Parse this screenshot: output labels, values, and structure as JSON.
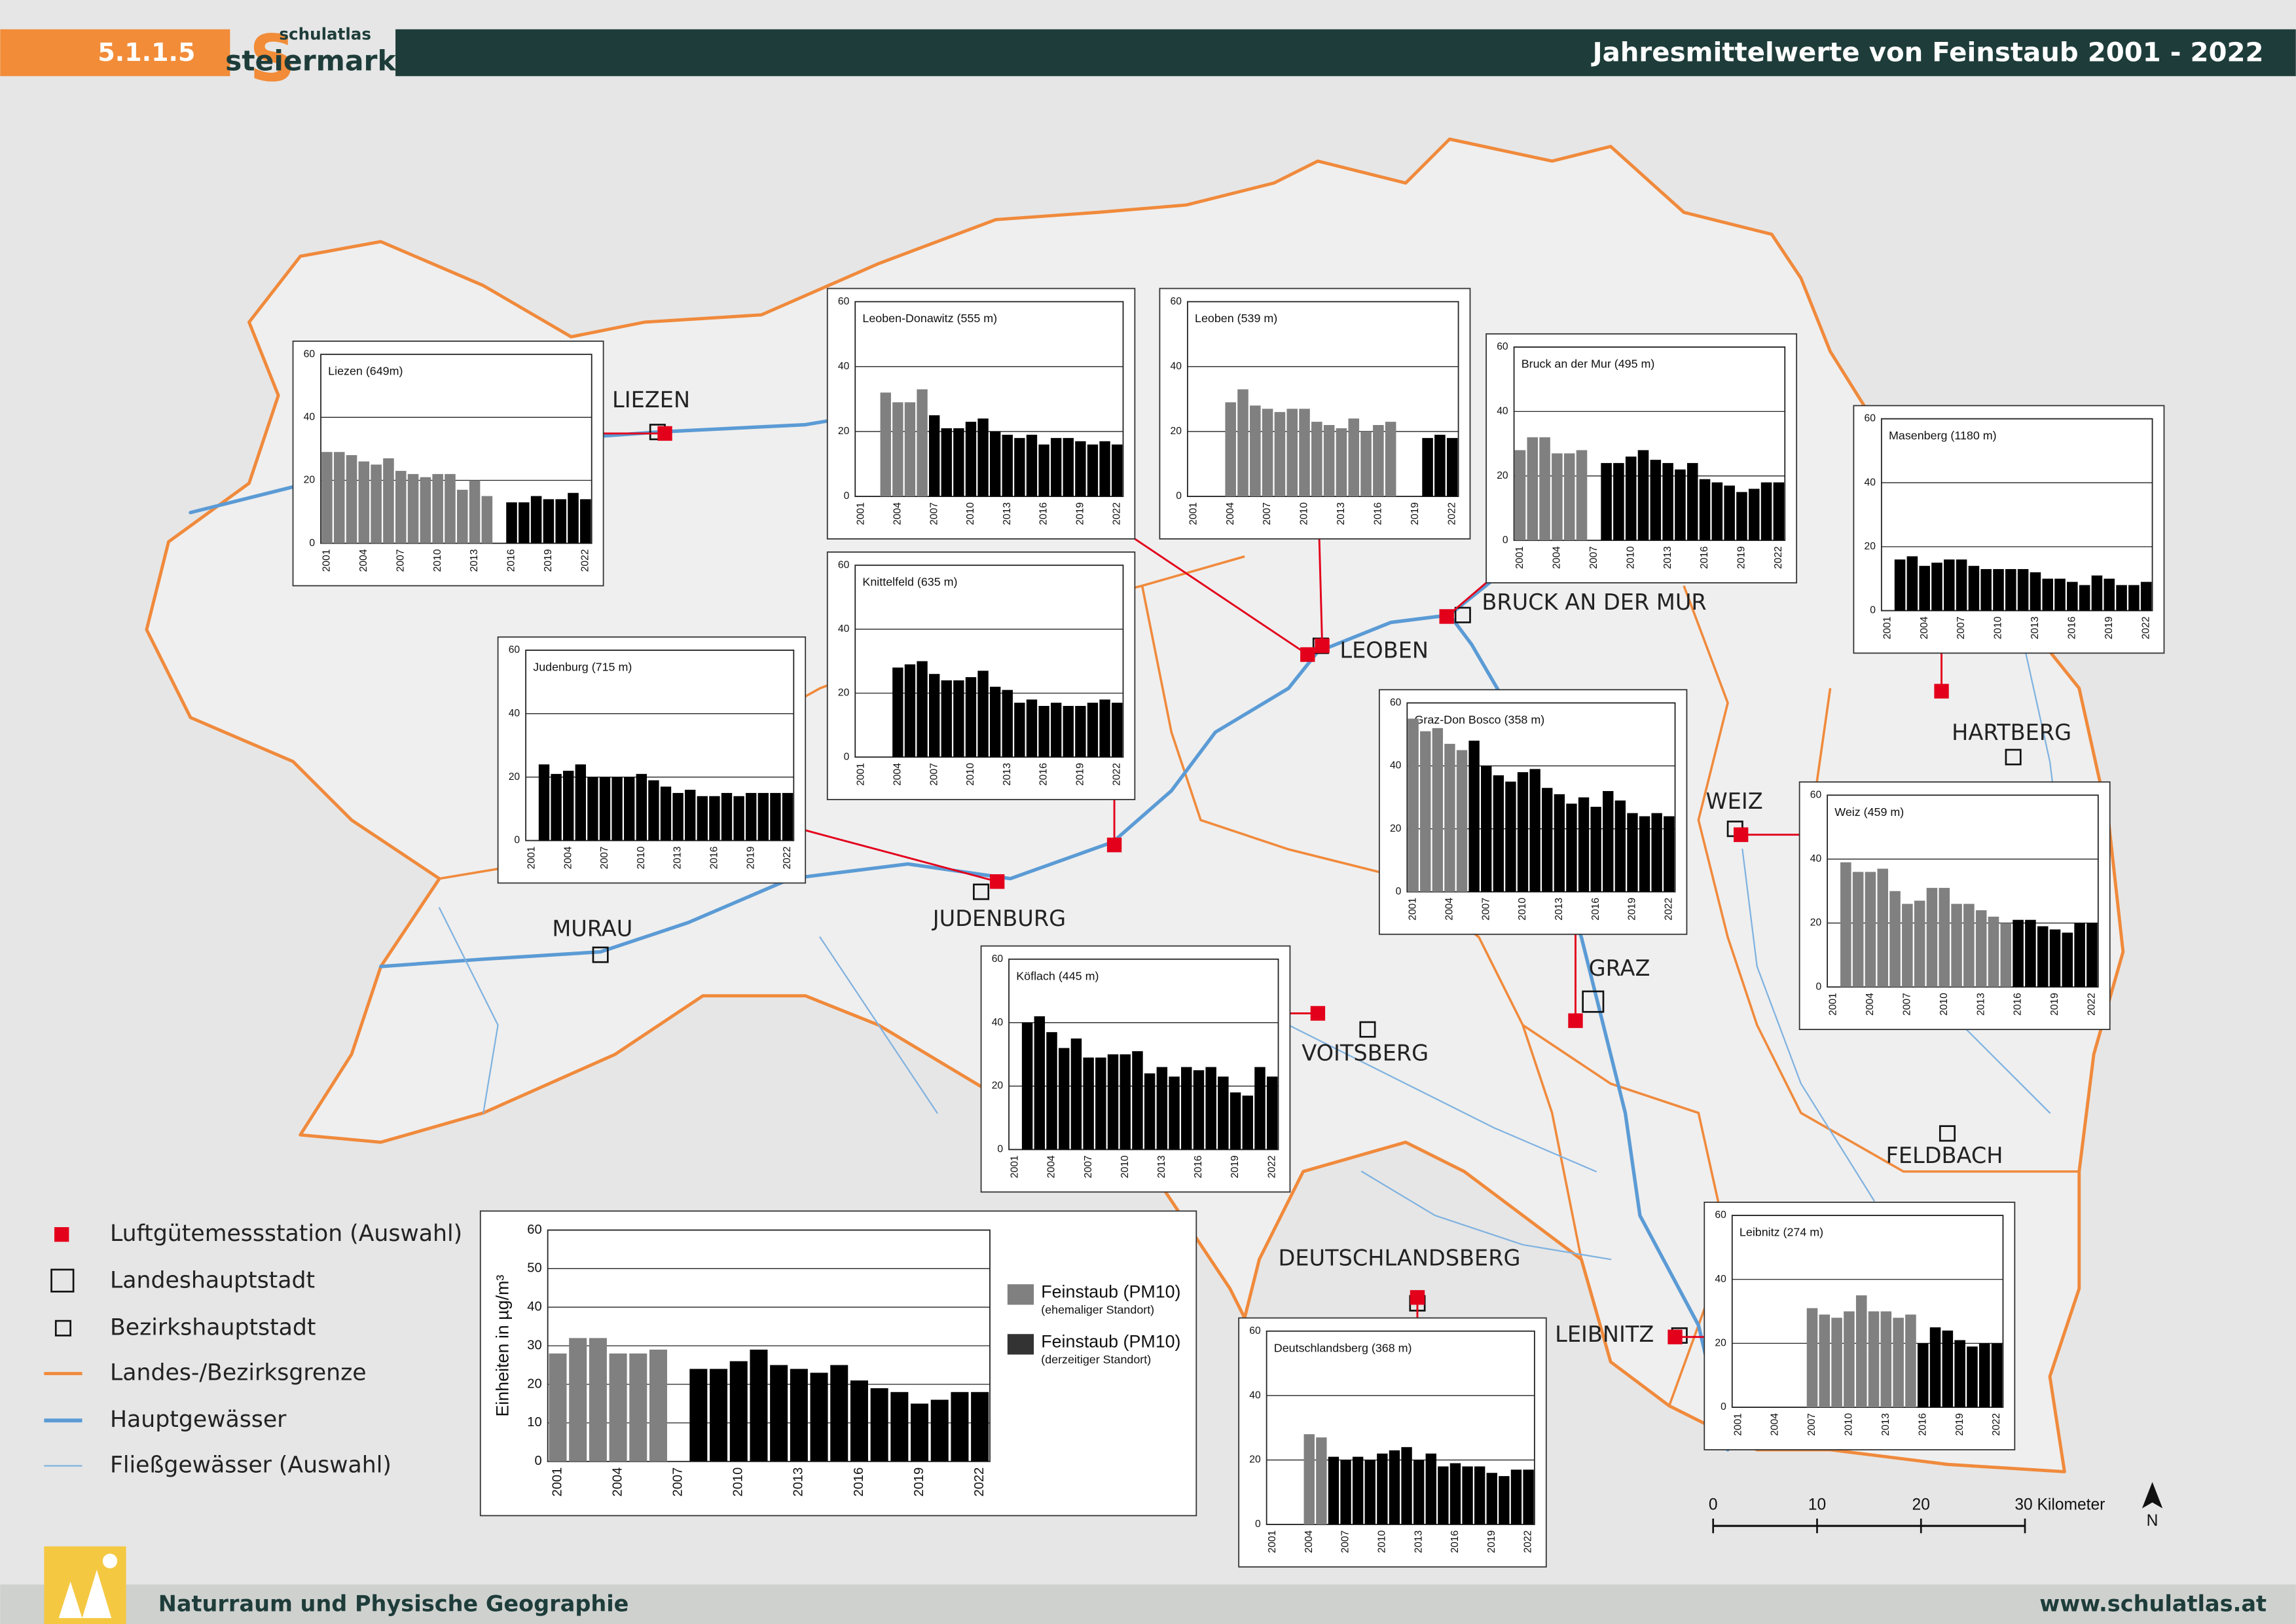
{
  "header": {
    "number": "5.1.1.5",
    "logo_letter": "S",
    "logo_top": "schulatlas",
    "logo_bottom": "steiermark",
    "title": "Jahresmittelwerte von Feinstaub 2001 - 2022"
  },
  "chart_data": [
    {
      "type": "bar",
      "title": "Liezen (649m)",
      "categories": [
        "2001",
        null,
        null,
        "2004",
        null,
        null,
        "2007",
        null,
        null,
        "2010",
        null,
        null,
        "2013",
        null,
        null,
        "2016",
        null,
        null,
        "2019",
        null,
        null,
        "2022"
      ],
      "ylim": [
        0,
        60
      ],
      "yticks": [
        0,
        20,
        40,
        60
      ],
      "grid": true,
      "series": [
        {
          "color": "#808080",
          "values": [
            29,
            29,
            28,
            26,
            25,
            27,
            23,
            22,
            21,
            22,
            22,
            17,
            20,
            15,
            null,
            null,
            null,
            null,
            null,
            null,
            null,
            null
          ]
        },
        {
          "color": "#000000",
          "values": [
            null,
            null,
            null,
            null,
            null,
            null,
            null,
            null,
            null,
            null,
            null,
            null,
            null,
            null,
            null,
            13,
            13,
            15,
            14,
            14,
            16,
            14
          ]
        }
      ]
    },
    {
      "type": "bar",
      "title": "Leoben-Donawitz (555 m)",
      "categories": [
        "2001",
        null,
        null,
        "2004",
        null,
        null,
        "2007",
        null,
        null,
        "2010",
        null,
        null,
        "2013",
        null,
        null,
        "2016",
        null,
        null,
        "2019",
        null,
        null,
        "2022"
      ],
      "ylim": [
        0,
        60
      ],
      "yticks": [
        0,
        20,
        40,
        60
      ],
      "grid": true,
      "series": [
        {
          "color": "#808080",
          "values": [
            null,
            null,
            32,
            29,
            29,
            33,
            null,
            null,
            null,
            null,
            null,
            null,
            null,
            null,
            null,
            null,
            null,
            null,
            null,
            null,
            null,
            null
          ]
        },
        {
          "color": "#000000",
          "values": [
            null,
            null,
            null,
            null,
            null,
            null,
            25,
            21,
            21,
            23,
            24,
            20,
            19,
            18,
            19,
            16,
            18,
            18,
            17,
            16,
            17,
            16
          ]
        }
      ]
    },
    {
      "type": "bar",
      "title": "Leoben (539 m)",
      "categories": [
        "2001",
        null,
        null,
        "2004",
        null,
        null,
        "2007",
        null,
        null,
        "2010",
        null,
        null,
        "2013",
        null,
        null,
        "2016",
        null,
        null,
        "2019",
        null,
        null,
        "2022"
      ],
      "ylim": [
        0,
        60
      ],
      "yticks": [
        0,
        20,
        40,
        60
      ],
      "grid": true,
      "series": [
        {
          "color": "#808080",
          "values": [
            null,
            null,
            null,
            29,
            33,
            28,
            27,
            26,
            27,
            27,
            23,
            22,
            21,
            24,
            20,
            22,
            23,
            null,
            null,
            null,
            null,
            null
          ]
        },
        {
          "color": "#000000",
          "values": [
            null,
            null,
            null,
            null,
            null,
            null,
            null,
            null,
            null,
            null,
            null,
            null,
            null,
            null,
            null,
            null,
            null,
            null,
            null,
            18,
            19,
            18
          ]
        }
      ]
    },
    {
      "type": "bar",
      "title": "Bruck an der Mur (495 m)",
      "categories": [
        "2001",
        null,
        null,
        "2004",
        null,
        null,
        "2007",
        null,
        null,
        "2010",
        null,
        null,
        "2013",
        null,
        null,
        "2016",
        null,
        null,
        "2019",
        null,
        null,
        "2022"
      ],
      "ylim": [
        0,
        60
      ],
      "yticks": [
        0,
        20,
        40,
        60
      ],
      "grid": true,
      "series": [
        {
          "color": "#808080",
          "values": [
            28,
            32,
            32,
            27,
            27,
            28,
            null,
            null,
            null,
            null,
            null,
            null,
            null,
            null,
            null,
            null,
            null,
            null,
            null,
            null,
            null,
            null
          ]
        },
        {
          "color": "#000000",
          "values": [
            null,
            null,
            null,
            null,
            null,
            null,
            null,
            24,
            24,
            26,
            28,
            25,
            24,
            22,
            24,
            19,
            18,
            17,
            15,
            16,
            18,
            18
          ]
        }
      ]
    },
    {
      "type": "bar",
      "title": "Masenberg (1180 m)",
      "categories": [
        "2001",
        null,
        null,
        "2004",
        null,
        null,
        "2007",
        null,
        null,
        "2010",
        null,
        null,
        "2013",
        null,
        null,
        "2016",
        null,
        null,
        "2019",
        null,
        null,
        "2022"
      ],
      "ylim": [
        0,
        60
      ],
      "yticks": [
        0,
        20,
        40,
        60
      ],
      "grid": true,
      "series": [
        {
          "color": "#000000",
          "values": [
            null,
            16,
            17,
            14,
            15,
            16,
            16,
            14,
            13,
            13,
            13,
            13,
            12,
            10,
            10,
            9,
            8,
            11,
            10,
            8,
            8,
            9
          ]
        }
      ]
    },
    {
      "type": "bar",
      "title": "Knittelfeld (635 m)",
      "categories": [
        "2001",
        null,
        null,
        "2004",
        null,
        null,
        "2007",
        null,
        null,
        "2010",
        null,
        null,
        "2013",
        null,
        null,
        "2016",
        null,
        null,
        "2019",
        null,
        null,
        "2022"
      ],
      "ylim": [
        0,
        60
      ],
      "yticks": [
        0,
        20,
        40,
        60
      ],
      "grid": true,
      "series": [
        {
          "color": "#000000",
          "values": [
            null,
            null,
            null,
            28,
            29,
            30,
            26,
            24,
            24,
            25,
            27,
            22,
            21,
            17,
            18,
            16,
            17,
            16,
            16,
            17,
            18,
            17
          ]
        }
      ]
    },
    {
      "type": "bar",
      "title": "Judenburg (715 m)",
      "categories": [
        "2001",
        null,
        null,
        "2004",
        null,
        null,
        "2007",
        null,
        null,
        "2010",
        null,
        null,
        "2013",
        null,
        null,
        "2016",
        null,
        null,
        "2019",
        null,
        null,
        "2022"
      ],
      "ylim": [
        0,
        60
      ],
      "yticks": [
        0,
        20,
        40,
        60
      ],
      "grid": true,
      "series": [
        {
          "color": "#000000",
          "values": [
            null,
            24,
            21,
            22,
            24,
            20,
            20,
            20,
            20,
            21,
            19,
            17,
            15,
            16,
            14,
            14,
            15,
            14,
            15,
            15,
            15,
            15
          ]
        }
      ]
    },
    {
      "type": "bar",
      "title": "Graz-Don Bosco (358 m)",
      "categories": [
        "2001",
        null,
        null,
        "2004",
        null,
        null,
        "2007",
        null,
        null,
        "2010",
        null,
        null,
        "2013",
        null,
        null,
        "2016",
        null,
        null,
        "2019",
        null,
        null,
        "2022"
      ],
      "ylim": [
        0,
        60
      ],
      "yticks": [
        0,
        20,
        40,
        60
      ],
      "grid": true,
      "series": [
        {
          "color": "#808080",
          "values": [
            55,
            51,
            52,
            47,
            45,
            null,
            null,
            null,
            null,
            null,
            null,
            null,
            null,
            null,
            null,
            null,
            null,
            null,
            null,
            null,
            null,
            null
          ]
        },
        {
          "color": "#000000",
          "values": [
            null,
            null,
            null,
            null,
            null,
            48,
            40,
            37,
            35,
            38,
            39,
            33,
            31,
            28,
            30,
            27,
            32,
            29,
            25,
            24,
            25,
            24
          ]
        }
      ]
    },
    {
      "type": "bar",
      "title": "Weiz (459 m)",
      "categories": [
        "2001",
        null,
        null,
        "2004",
        null,
        null,
        "2007",
        null,
        null,
        "2010",
        null,
        null,
        "2013",
        null,
        null,
        "2016",
        null,
        null,
        "2019",
        null,
        null,
        "2022"
      ],
      "ylim": [
        0,
        60
      ],
      "yticks": [
        0,
        20,
        40,
        60
      ],
      "grid": true,
      "series": [
        {
          "color": "#808080",
          "values": [
            null,
            39,
            36,
            36,
            37,
            30,
            26,
            27,
            31,
            31,
            26,
            26,
            24,
            22,
            20,
            null,
            null,
            null,
            null,
            null,
            null,
            null
          ]
        },
        {
          "color": "#000000",
          "values": [
            null,
            null,
            null,
            null,
            null,
            null,
            null,
            null,
            null,
            null,
            null,
            null,
            null,
            null,
            null,
            21,
            21,
            19,
            18,
            17,
            20,
            20
          ]
        }
      ]
    },
    {
      "type": "bar",
      "title": "Köflach (445 m)",
      "categories": [
        "2001",
        null,
        null,
        "2004",
        null,
        null,
        "2007",
        null,
        null,
        "2010",
        null,
        null,
        "2013",
        null,
        null,
        "2016",
        null,
        null,
        "2019",
        null,
        null,
        "2022"
      ],
      "ylim": [
        0,
        60
      ],
      "yticks": [
        0,
        20,
        40,
        60
      ],
      "grid": true,
      "series": [
        {
          "color": "#000000",
          "values": [
            null,
            40,
            42,
            37,
            32,
            35,
            29,
            29,
            30,
            30,
            31,
            24,
            26,
            23,
            26,
            25,
            26,
            23,
            18,
            17,
            26,
            23
          ]
        }
      ]
    },
    {
      "type": "bar",
      "title": "Deutschlandsberg (368 m)",
      "categories": [
        "2001",
        null,
        null,
        "2004",
        null,
        null,
        "2007",
        null,
        null,
        "2010",
        null,
        null,
        "2013",
        null,
        null,
        "2016",
        null,
        null,
        "2019",
        null,
        null,
        "2022"
      ],
      "ylim": [
        0,
        60
      ],
      "yticks": [
        0,
        20,
        40,
        60
      ],
      "grid": true,
      "series": [
        {
          "color": "#808080",
          "values": [
            null,
            null,
            null,
            28,
            27,
            null,
            null,
            null,
            null,
            null,
            null,
            null,
            null,
            null,
            null,
            null,
            null,
            null,
            null,
            null,
            null,
            null
          ]
        },
        {
          "color": "#000000",
          "values": [
            null,
            null,
            null,
            null,
            null,
            21,
            20,
            21,
            20,
            22,
            23,
            24,
            20,
            22,
            18,
            19,
            18,
            18,
            16,
            15,
            17,
            17
          ]
        }
      ]
    },
    {
      "type": "bar",
      "title": "Leibnitz (274 m)",
      "categories": [
        "2001",
        null,
        null,
        "2004",
        null,
        null,
        "2007",
        null,
        null,
        "2010",
        null,
        null,
        "2013",
        null,
        null,
        "2016",
        null,
        null,
        "2019",
        null,
        null,
        "2022"
      ],
      "ylim": [
        0,
        60
      ],
      "yticks": [
        0,
        20,
        40,
        60
      ],
      "grid": true,
      "series": [
        {
          "color": "#808080",
          "values": [
            null,
            null,
            null,
            null,
            null,
            null,
            31,
            29,
            28,
            30,
            35,
            30,
            30,
            28,
            29,
            null,
            null,
            null,
            null,
            null,
            null,
            null
          ]
        },
        {
          "color": "#000000",
          "values": [
            null,
            null,
            null,
            null,
            null,
            null,
            null,
            null,
            null,
            null,
            null,
            null,
            null,
            null,
            null,
            20,
            25,
            24,
            21,
            19,
            20,
            20
          ]
        }
      ]
    },
    {
      "type": "bar",
      "ylabel": "Einheiten in µg/m³",
      "categories": [
        "2001",
        null,
        null,
        "2004",
        null,
        null,
        "2007",
        null,
        null,
        "2010",
        null,
        null,
        "2013",
        null,
        null,
        "2016",
        null,
        null,
        "2019",
        null,
        null,
        "2022"
      ],
      "ylim": [
        0,
        60
      ],
      "yticks": [
        0,
        10,
        20,
        30,
        40,
        50,
        60
      ],
      "grid": true,
      "series": [
        {
          "name": "Feinstaub (PM10)",
          "note": "(ehemaliger Standort)",
          "color": "#808080",
          "values": [
            28,
            32,
            32,
            28,
            28,
            29,
            null,
            null,
            null,
            null,
            null,
            null,
            null,
            null,
            null,
            null,
            null,
            null,
            null,
            null,
            null,
            null
          ]
        },
        {
          "name": "Feinstaub (PM10)",
          "note": "(derzeitiger Standort)",
          "color": "#000000",
          "values": [
            null,
            null,
            null,
            null,
            null,
            null,
            null,
            24,
            24,
            26,
            29,
            25,
            24,
            23,
            25,
            21,
            19,
            18,
            15,
            16,
            18,
            18
          ]
        }
      ]
    }
  ],
  "map": {
    "places": [
      "LIEZEN",
      "LEOBEN",
      "BRUCK AN DER MUR",
      "HARTBERG",
      "WEIZ",
      "JUDENBURG",
      "MURAU",
      "GRAZ",
      "VOITSBERG",
      "FELDBACH",
      "DEUTSCHLANDSBERG",
      "LEIBNITZ"
    ]
  },
  "legend": {
    "items": [
      "Luftgütemessstation (Auswahl)",
      "Landeshauptstadt",
      "Bezirkshauptstadt",
      "Landes-/Bezirksgrenze",
      "Hauptgewässer",
      "Fließgewässer (Auswahl)"
    ]
  },
  "scale_bar": {
    "ticks": [
      0,
      10,
      20,
      {
        "value": 30,
        "label": "30 Kilometer"
      }
    ]
  },
  "north": "N",
  "footer": {
    "left": "Naturraum und Physische Geographie",
    "right": "www.schulatlas.at"
  }
}
